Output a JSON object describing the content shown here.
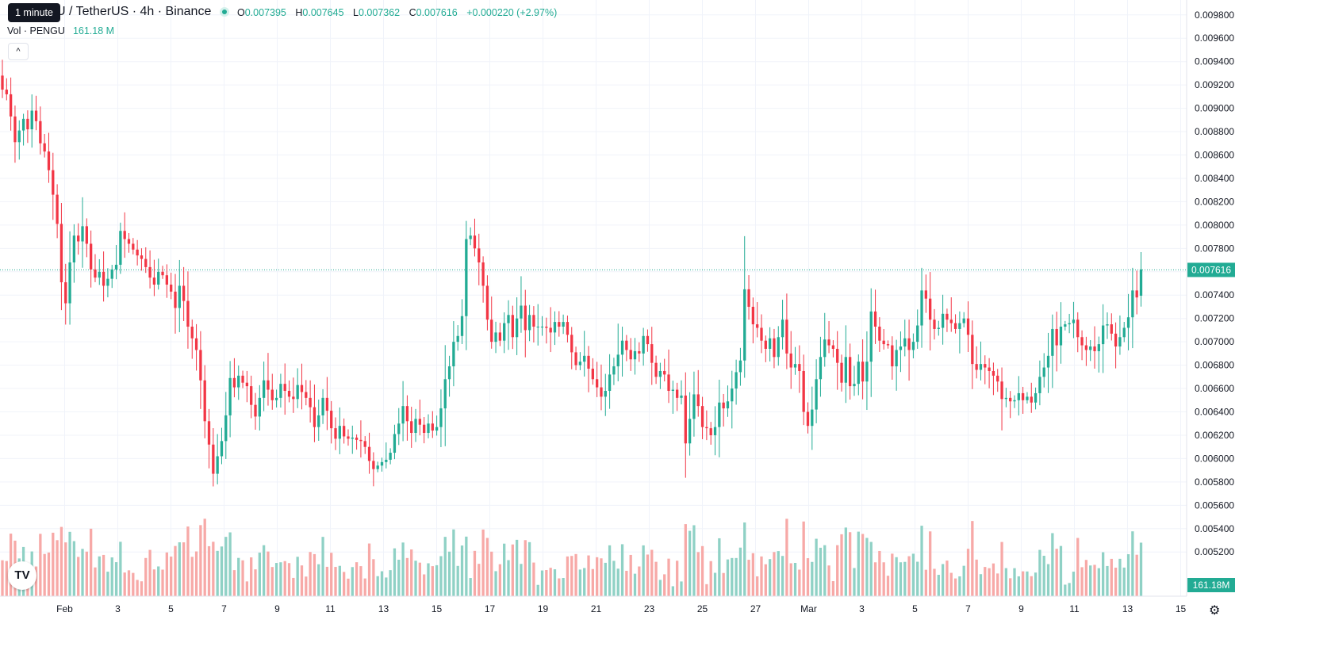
{
  "header": {
    "symbol": "U / TetherUS · 4h · Binance",
    "tooltip": "1 minute",
    "ohlc": {
      "o_label": "O",
      "o": "0.007395",
      "h_label": "H",
      "h": "0.007645",
      "l_label": "L",
      "l": "0.007362",
      "c_label": "C",
      "c": "0.007616",
      "change": "+0.000220 (+2.97%)"
    },
    "volume_label": "Vol · PENGU",
    "volume_value": "161.18 M",
    "collapse_glyph": "^",
    "logo_text": "TV",
    "settings_icon": "gear-icon"
  },
  "colors": {
    "up": "#22ab94",
    "down": "#f23645",
    "up_vol": "#8fd1c5",
    "down_vol": "#f7a9a7",
    "grid": "#f0f3fa",
    "price_line": "#22ab94"
  },
  "chart_data": {
    "type": "candlestick",
    "x_ticks": [
      "Feb",
      "3",
      "5",
      "7",
      "9",
      "11",
      "13",
      "15",
      "17",
      "19",
      "21",
      "23",
      "25",
      "27",
      "Mar",
      "3",
      "5",
      "7",
      "9",
      "11",
      "13",
      "15"
    ],
    "y_ticks": [
      "0.005200",
      "0.005400",
      "0.005600",
      "0.005800",
      "0.006000",
      "0.006200",
      "0.006400",
      "0.006600",
      "0.006800",
      "0.007000",
      "0.007200",
      "0.007400",
      "0.007600",
      "0.007800",
      "0.008000",
      "0.008200",
      "0.008400",
      "0.008600",
      "0.008800",
      "0.009000",
      "0.009200",
      "0.009400",
      "0.009600",
      "0.009800"
    ],
    "y_range": [
      0.00511,
      0.00988
    ],
    "last_price": 0.007616,
    "last_price_label": "0.007616",
    "last_volume_label": "161.18M",
    "close": [
      0.00916,
      0.00912,
      0.00893,
      0.00871,
      0.00881,
      0.00891,
      0.00882,
      0.00898,
      0.00889,
      0.0087,
      0.00863,
      0.00847,
      0.00826,
      0.00801,
      0.00751,
      0.00733,
      0.00768,
      0.00791,
      0.00786,
      0.00799,
      0.00784,
      0.00762,
      0.00755,
      0.0076,
      0.00748,
      0.00754,
      0.00762,
      0.00766,
      0.00795,
      0.00788,
      0.00784,
      0.00779,
      0.00774,
      0.00771,
      0.00764,
      0.00755,
      0.00749,
      0.0076,
      0.00757,
      0.00749,
      0.00743,
      0.00729,
      0.00748,
      0.00735,
      0.00713,
      0.00703,
      0.00693,
      0.00667,
      0.00632,
      0.00612,
      0.00587,
      0.00602,
      0.00615,
      0.00637,
      0.00669,
      0.00661,
      0.00671,
      0.00665,
      0.00662,
      0.00646,
      0.00636,
      0.00652,
      0.00667,
      0.00659,
      0.0065,
      0.00652,
      0.00664,
      0.00658,
      0.00653,
      0.00651,
      0.00663,
      0.00657,
      0.00652,
      0.00644,
      0.00627,
      0.00637,
      0.00652,
      0.00641,
      0.00626,
      0.00617,
      0.00628,
      0.00619,
      0.00617,
      0.00618,
      0.00616,
      0.00615,
      0.0061,
      0.00598,
      0.00591,
      0.00594,
      0.00597,
      0.00599,
      0.00605,
      0.00621,
      0.0063,
      0.00645,
      0.00632,
      0.00622,
      0.00634,
      0.00629,
      0.00622,
      0.0063,
      0.00624,
      0.00627,
      0.00643,
      0.00668,
      0.00679,
      0.007,
      0.00705,
      0.00722,
      0.00788,
      0.00791,
      0.0078,
      0.00768,
      0.00748,
      0.00719,
      0.007,
      0.00708,
      0.00701,
      0.00716,
      0.00723,
      0.00704,
      0.0072,
      0.00731,
      0.0071,
      0.00723,
      0.00713,
      0.00713,
      0.00713,
      0.00712,
      0.00708,
      0.00717,
      0.00713,
      0.00717,
      0.00706,
      0.00691,
      0.0068,
      0.00683,
      0.00688,
      0.00677,
      0.00668,
      0.00661,
      0.00653,
      0.00658,
      0.00672,
      0.00679,
      0.00689,
      0.00701,
      0.00693,
      0.00685,
      0.00692,
      0.0069,
      0.00705,
      0.00698,
      0.00682,
      0.0067,
      0.00675,
      0.00672,
      0.00658,
      0.00659,
      0.00652,
      0.00654,
      0.00613,
      0.00634,
      0.00655,
      0.00645,
      0.00627,
      0.00626,
      0.0062,
      0.00627,
      0.00648,
      0.00643,
      0.00649,
      0.0066,
      0.00674,
      0.00684,
      0.00745,
      0.0073,
      0.00715,
      0.00712,
      0.00701,
      0.00694,
      0.00703,
      0.00687,
      0.00704,
      0.00719,
      0.0069,
      0.00678,
      0.00681,
      0.00675,
      0.0064,
      0.00628,
      0.00642,
      0.00668,
      0.00687,
      0.00702,
      0.00697,
      0.00694,
      0.00682,
      0.00665,
      0.00687,
      0.00662,
      0.00664,
      0.00683,
      0.00666,
      0.00683,
      0.00726,
      0.00713,
      0.00701,
      0.00698,
      0.00697,
      0.00679,
      0.00693,
      0.00696,
      0.00703,
      0.00693,
      0.007,
      0.00714,
      0.00744,
      0.00737,
      0.00719,
      0.00711,
      0.00712,
      0.00724,
      0.00719,
      0.00716,
      0.00711,
      0.00716,
      0.0072,
      0.00706,
      0.00681,
      0.00676,
      0.00681,
      0.00678,
      0.00675,
      0.00671,
      0.00666,
      0.00651,
      0.00652,
      0.00649,
      0.0065,
      0.00656,
      0.0065,
      0.00653,
      0.00648,
      0.00656,
      0.0067,
      0.00678,
      0.00688,
      0.00711,
      0.00697,
      0.00713,
      0.00715,
      0.00716,
      0.00719,
      0.00704,
      0.00697,
      0.00693,
      0.00696,
      0.00692,
      0.00698,
      0.00714,
      0.00715,
      0.00707,
      0.00696,
      0.00704,
      0.00712,
      0.00721,
      0.00744,
      0.00738,
      0.00762
    ]
  }
}
